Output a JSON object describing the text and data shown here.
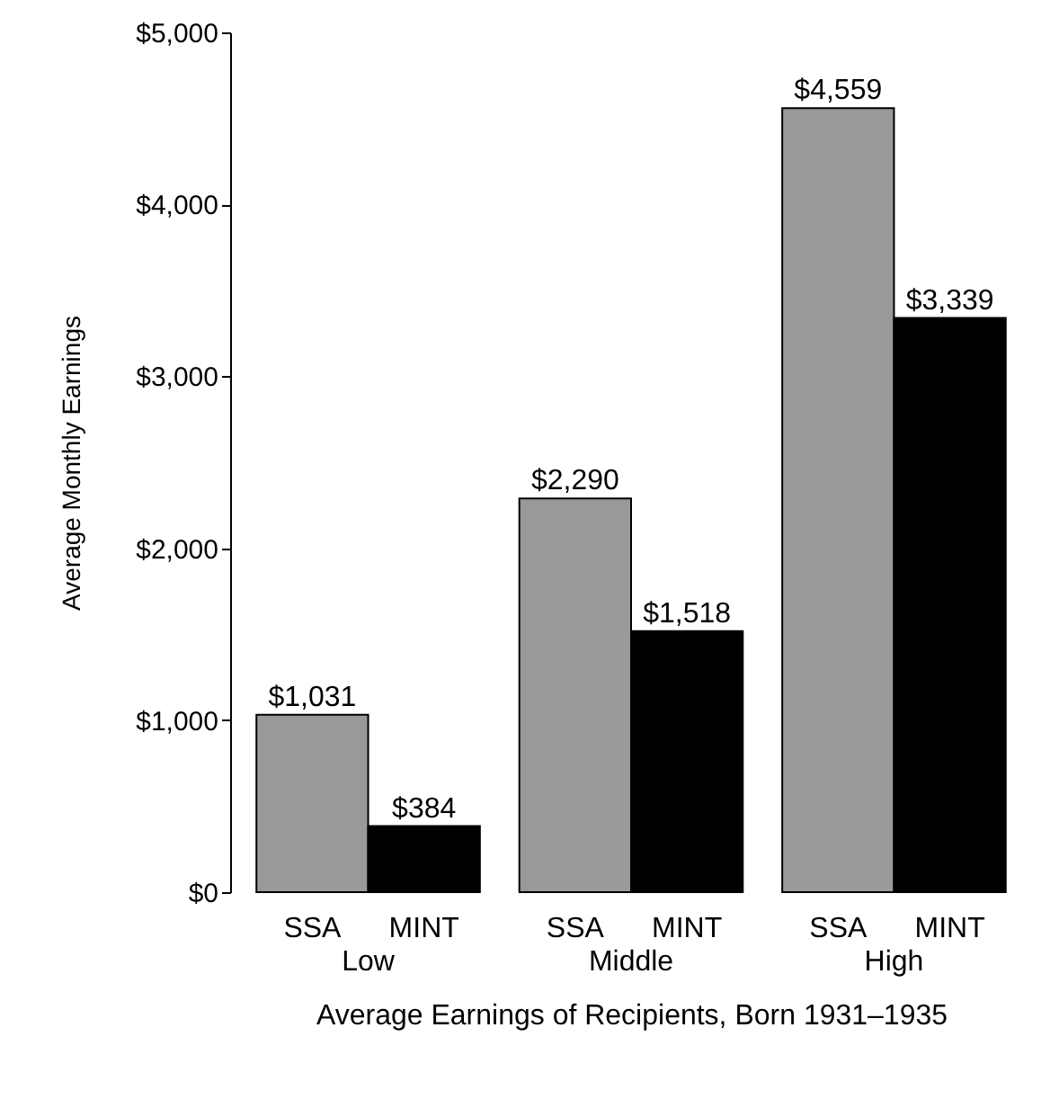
{
  "chart_data": {
    "type": "bar",
    "xlabel": "Average Earnings of Recipients, Born 1931–1935",
    "ylabel": "Average Monthly Earnings",
    "categories": [
      "Low",
      "Middle",
      "High"
    ],
    "series": [
      {
        "name": "SSA",
        "color": "#999999",
        "values": [
          1031,
          2290,
          4559
        ]
      },
      {
        "name": "MINT",
        "color": "#000000",
        "values": [
          384,
          1518,
          3339
        ]
      }
    ],
    "value_labels": [
      "$1,031",
      "$2,290",
      "$4,559",
      "$384",
      "$1,518",
      "$3,339"
    ],
    "ylim": [
      0,
      5000
    ],
    "yticks": [
      {
        "value": 0,
        "label": "$0"
      },
      {
        "value": 1000,
        "label": "$1,000"
      },
      {
        "value": 2000,
        "label": "$2,000"
      },
      {
        "value": 3000,
        "label": "$3,000"
      },
      {
        "value": 4000,
        "label": "$4,000"
      },
      {
        "value": 5000,
        "label": "$5,000"
      }
    ],
    "grid": false
  }
}
